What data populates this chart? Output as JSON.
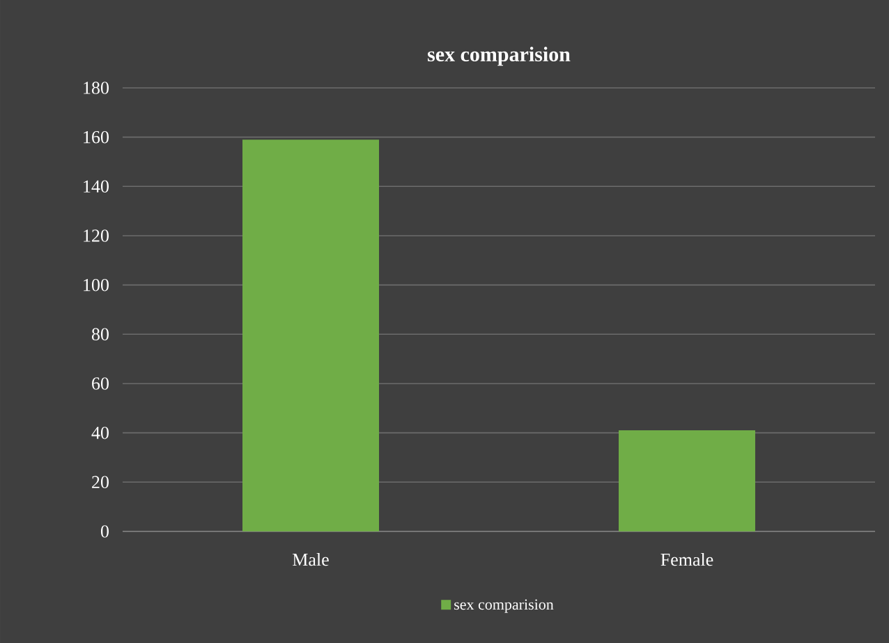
{
  "chart_data": {
    "type": "bar",
    "title": "sex comparision",
    "categories": [
      "Male",
      "Female"
    ],
    "series": [
      {
        "name": "sex comparision",
        "color": "#70ad47",
        "values": [
          159,
          41
        ]
      }
    ],
    "ylim": [
      0,
      180
    ],
    "yticks": [
      0,
      20,
      40,
      60,
      80,
      100,
      120,
      140,
      160,
      180
    ],
    "grid": "y",
    "legend": "bottom"
  }
}
